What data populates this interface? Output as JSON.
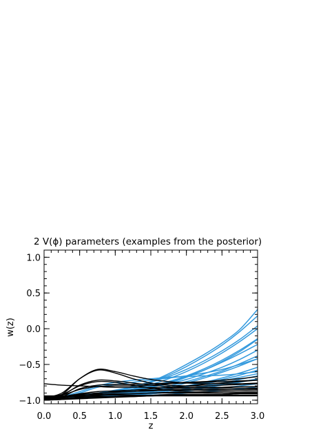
{
  "chart_data": {
    "type": "line",
    "title": "2 V(ϕ) parameters (examples from the posterior)",
    "xlabel": "z",
    "ylabel": "w(z)",
    "xlim": [
      0.0,
      3.0
    ],
    "ylim": [
      -1.05,
      1.1
    ],
    "x_ticks": [
      "0.0",
      "0.5",
      "1.0",
      "1.5",
      "2.0",
      "2.5",
      "3.0"
    ],
    "y_ticks": [
      "-1.0",
      "-0.5",
      "0.0",
      "0.5",
      "1.0"
    ],
    "grid": false,
    "colors": {
      "blue": "#3399dd",
      "black": "#000000"
    },
    "x": [
      0.0,
      0.25,
      0.5,
      0.75,
      1.0,
      1.25,
      1.5,
      1.75,
      2.0,
      2.25,
      2.5,
      2.75,
      3.0
    ],
    "series": [
      {
        "color": "blue",
        "values": [
          -0.98,
          -0.97,
          -0.95,
          -0.92,
          -0.88,
          -0.82,
          -0.74,
          -0.63,
          -0.5,
          -0.36,
          -0.2,
          -0.01,
          0.27
        ]
      },
      {
        "color": "blue",
        "values": [
          -0.97,
          -0.96,
          -0.94,
          -0.91,
          -0.87,
          -0.81,
          -0.74,
          -0.65,
          -0.53,
          -0.39,
          -0.23,
          -0.04,
          0.18
        ]
      },
      {
        "color": "blue",
        "values": [
          -0.96,
          -0.95,
          -0.93,
          -0.9,
          -0.86,
          -0.81,
          -0.75,
          -0.67,
          -0.57,
          -0.45,
          -0.31,
          -0.15,
          0.04
        ]
      },
      {
        "color": "blue",
        "values": [
          -0.98,
          -0.97,
          -0.96,
          -0.94,
          -0.91,
          -0.87,
          -0.82,
          -0.76,
          -0.68,
          -0.58,
          -0.46,
          -0.32,
          -0.15
        ]
      },
      {
        "color": "blue",
        "values": [
          -0.97,
          -0.96,
          -0.95,
          -0.93,
          -0.9,
          -0.86,
          -0.82,
          -0.77,
          -0.71,
          -0.63,
          -0.54,
          -0.43,
          -0.3
        ]
      },
      {
        "color": "blue",
        "values": [
          -0.99,
          -0.98,
          -0.97,
          -0.95,
          -0.93,
          -0.9,
          -0.86,
          -0.82,
          -0.76,
          -0.69,
          -0.61,
          -0.52,
          -0.42
        ]
      },
      {
        "color": "blue",
        "values": [
          -0.98,
          -0.97,
          -0.96,
          -0.95,
          -0.93,
          -0.91,
          -0.88,
          -0.84,
          -0.8,
          -0.75,
          -0.69,
          -0.62,
          -0.54
        ]
      },
      {
        "color": "blue",
        "values": [
          -0.96,
          -0.95,
          -0.94,
          -0.93,
          -0.91,
          -0.89,
          -0.87,
          -0.84,
          -0.81,
          -0.77,
          -0.73,
          -0.68,
          -0.63
        ]
      },
      {
        "color": "blue",
        "values": [
          -0.99,
          -0.98,
          -0.97,
          -0.96,
          -0.95,
          -0.93,
          -0.91,
          -0.89,
          -0.86,
          -0.83,
          -0.79,
          -0.75,
          -0.7
        ]
      },
      {
        "color": "blue",
        "values": [
          -0.97,
          -0.96,
          -0.95,
          -0.94,
          -0.93,
          -0.92,
          -0.91,
          -0.89,
          -0.87,
          -0.85,
          -0.83,
          -0.8,
          -0.77
        ]
      },
      {
        "color": "blue",
        "values": [
          -0.98,
          -0.97,
          -0.9,
          -0.82,
          -0.78,
          -0.75,
          -0.72,
          -0.69,
          -0.66,
          -0.62,
          -0.57,
          -0.5,
          -0.42
        ]
      },
      {
        "color": "blue",
        "values": [
          -0.97,
          -0.95,
          -0.88,
          -0.8,
          -0.75,
          -0.72,
          -0.7,
          -0.68,
          -0.67,
          -0.66,
          -0.65,
          -0.63,
          -0.6
        ]
      },
      {
        "color": "blue",
        "values": [
          -0.99,
          -0.98,
          -0.96,
          -0.93,
          -0.89,
          -0.84,
          -0.78,
          -0.7,
          -0.6,
          -0.48,
          -0.34,
          -0.18,
          0.0
        ]
      },
      {
        "color": "blue",
        "values": [
          -0.98,
          -0.97,
          -0.95,
          -0.93,
          -0.9,
          -0.86,
          -0.81,
          -0.75,
          -0.67,
          -0.58,
          -0.47,
          -0.35,
          -0.22
        ]
      },
      {
        "color": "blue",
        "values": [
          -0.97,
          -0.96,
          -0.94,
          -0.92,
          -0.89,
          -0.85,
          -0.8,
          -0.74,
          -0.66,
          -0.56,
          -0.44,
          -0.3,
          -0.14
        ]
      },
      {
        "color": "blue",
        "values": [
          -0.98,
          -0.97,
          -0.96,
          -0.94,
          -0.92,
          -0.89,
          -0.85,
          -0.8,
          -0.74,
          -0.67,
          -0.59,
          -0.49,
          -0.38
        ]
      },
      {
        "color": "blue",
        "values": [
          -0.96,
          -0.96,
          -0.95,
          -0.94,
          -0.92,
          -0.9,
          -0.87,
          -0.84,
          -0.8,
          -0.76,
          -0.71,
          -0.65,
          -0.58
        ]
      },
      {
        "color": "blue",
        "values": [
          -0.99,
          -0.98,
          -0.97,
          -0.96,
          -0.94,
          -0.92,
          -0.9,
          -0.87,
          -0.84,
          -0.8,
          -0.76,
          -0.71,
          -0.66
        ]
      },
      {
        "color": "blue",
        "values": [
          -0.97,
          -0.96,
          -0.95,
          -0.94,
          -0.93,
          -0.91,
          -0.89,
          -0.87,
          -0.84,
          -0.81,
          -0.78,
          -0.74,
          -0.71
        ]
      },
      {
        "color": "blue",
        "values": [
          -0.98,
          -0.97,
          -0.96,
          -0.96,
          -0.95,
          -0.94,
          -0.93,
          -0.92,
          -0.9,
          -0.88,
          -0.86,
          -0.84,
          -0.81
        ]
      },
      {
        "color": "black",
        "values": [
          -0.98,
          -0.92,
          -0.7,
          -0.57,
          -0.6,
          -0.66,
          -0.71,
          -0.74,
          -0.76,
          -0.77,
          -0.77,
          -0.77,
          -0.76
        ]
      },
      {
        "color": "black",
        "values": [
          -0.97,
          -0.9,
          -0.7,
          -0.58,
          -0.62,
          -0.7,
          -0.76,
          -0.79,
          -0.8,
          -0.8,
          -0.79,
          -0.78,
          -0.77
        ]
      },
      {
        "color": "black",
        "values": [
          -0.96,
          -0.93,
          -0.79,
          -0.72,
          -0.73,
          -0.76,
          -0.79,
          -0.81,
          -0.82,
          -0.82,
          -0.82,
          -0.81,
          -0.81
        ]
      },
      {
        "color": "black",
        "values": [
          -0.98,
          -0.95,
          -0.84,
          -0.79,
          -0.78,
          -0.78,
          -0.77,
          -0.76,
          -0.75,
          -0.74,
          -0.72,
          -0.7,
          -0.67
        ]
      },
      {
        "color": "black",
        "values": [
          -0.95,
          -0.93,
          -0.85,
          -0.81,
          -0.8,
          -0.8,
          -0.79,
          -0.77,
          -0.76,
          -0.75,
          -0.74,
          -0.73,
          -0.72
        ]
      },
      {
        "color": "black",
        "values": [
          -0.77,
          -0.79,
          -0.8,
          -0.81,
          -0.82,
          -0.82,
          -0.82,
          -0.83,
          -0.83,
          -0.83,
          -0.83,
          -0.83,
          -0.83
        ]
      },
      {
        "color": "black",
        "values": [
          -0.97,
          -0.95,
          -0.91,
          -0.88,
          -0.87,
          -0.86,
          -0.86,
          -0.85,
          -0.85,
          -0.85,
          -0.85,
          -0.85,
          -0.84
        ]
      },
      {
        "color": "black",
        "values": [
          -0.99,
          -0.98,
          -0.96,
          -0.94,
          -0.92,
          -0.91,
          -0.9,
          -0.89,
          -0.89,
          -0.88,
          -0.88,
          -0.87,
          -0.87
        ]
      },
      {
        "color": "black",
        "values": [
          -0.96,
          -0.95,
          -0.93,
          -0.92,
          -0.91,
          -0.91,
          -0.9,
          -0.9,
          -0.9,
          -0.9,
          -0.9,
          -0.89,
          -0.89
        ]
      },
      {
        "color": "black",
        "values": [
          -1.0,
          -0.99,
          -0.98,
          -0.97,
          -0.96,
          -0.95,
          -0.94,
          -0.93,
          -0.93,
          -0.92,
          -0.92,
          -0.91,
          -0.91
        ]
      },
      {
        "color": "black",
        "values": [
          -0.94,
          -0.94,
          -0.94,
          -0.93,
          -0.93,
          -0.93,
          -0.93,
          -0.92,
          -0.92,
          -0.92,
          -0.92,
          -0.91,
          -0.91
        ]
      },
      {
        "color": "black",
        "values": [
          -0.99,
          -0.97,
          -0.94,
          -0.91,
          -0.88,
          -0.86,
          -0.84,
          -0.82,
          -0.8,
          -0.78,
          -0.76,
          -0.74,
          -0.72
        ]
      },
      {
        "color": "black",
        "values": [
          -0.98,
          -0.96,
          -0.92,
          -0.9,
          -0.89,
          -0.88,
          -0.87,
          -0.86,
          -0.86,
          -0.86,
          -0.86,
          -0.85,
          -0.85
        ]
      },
      {
        "color": "black",
        "values": [
          -1.0,
          -0.99,
          -0.97,
          -0.96,
          -0.95,
          -0.94,
          -0.94,
          -0.93,
          -0.93,
          -0.93,
          -0.93,
          -0.93,
          -0.93
        ]
      },
      {
        "color": "black",
        "values": [
          -0.97,
          -0.96,
          -0.95,
          -0.95,
          -0.95,
          -0.95,
          -0.94,
          -0.94,
          -0.94,
          -0.94,
          -0.94,
          -0.94,
          -0.94
        ]
      },
      {
        "color": "black",
        "values": [
          -0.96,
          -0.92,
          -0.8,
          -0.74,
          -0.75,
          -0.79,
          -0.83,
          -0.86,
          -0.88,
          -0.89,
          -0.9,
          -0.9,
          -0.9
        ]
      }
    ]
  }
}
